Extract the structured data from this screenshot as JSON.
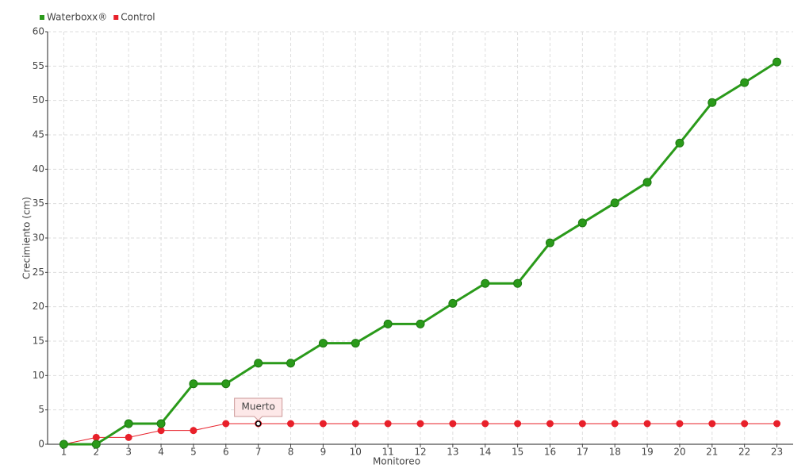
{
  "chart_data": {
    "type": "line",
    "x_label": "Monitoreo",
    "y_label": "Crecimiento (cm)",
    "categories": [
      "1",
      "2",
      "3",
      "4",
      "5",
      "6",
      "7",
      "8",
      "9",
      "10",
      "11",
      "12",
      "13",
      "14",
      "15",
      "16",
      "17",
      "18",
      "19",
      "20",
      "21",
      "22",
      "23"
    ],
    "series": [
      {
        "name": "Waterboxx®",
        "color": "#2a9a1a",
        "values": [
          0,
          0,
          3,
          3,
          8.8,
          8.8,
          11.8,
          11.8,
          14.7,
          14.7,
          17.5,
          17.5,
          20.5,
          23.4,
          23.4,
          29.3,
          32.2,
          35.1,
          38.1,
          43.8,
          49.7,
          52.6,
          55.6
        ]
      },
      {
        "name": "Control",
        "color": "#e8202a",
        "values": [
          0,
          1,
          1,
          2,
          2,
          3,
          3,
          3,
          3,
          3,
          3,
          3,
          3,
          3,
          3,
          3,
          3,
          3,
          3,
          3,
          3,
          3,
          3
        ]
      }
    ],
    "annotations": [
      {
        "text": "Muerto",
        "x": "7",
        "series": "Control"
      }
    ],
    "ylim": [
      0,
      60
    ],
    "yticks": [
      0,
      5,
      10,
      15,
      20,
      25,
      30,
      35,
      40,
      45,
      50,
      55,
      60
    ],
    "grid": true,
    "legend": "top-left"
  }
}
